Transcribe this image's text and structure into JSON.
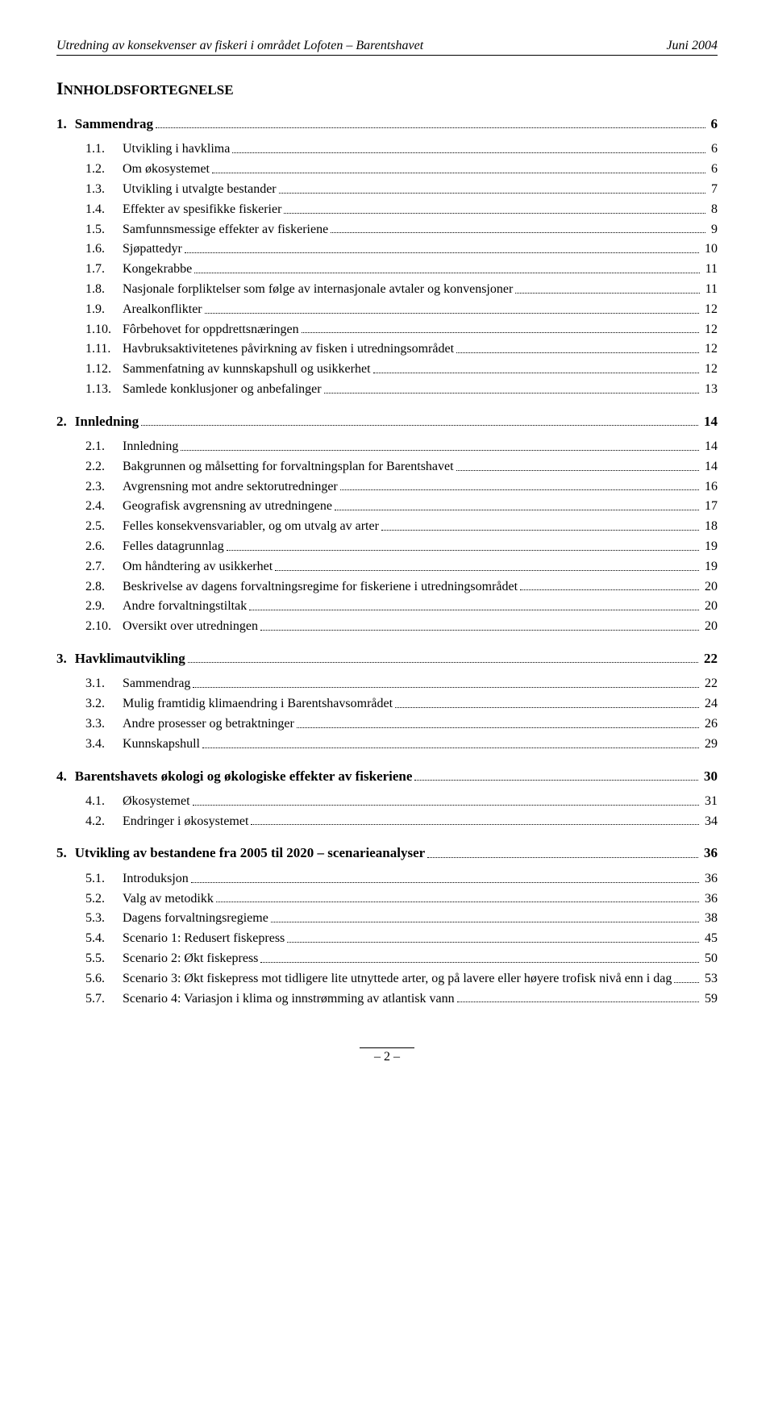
{
  "header": {
    "left": "Utredning av konsekvenser av fiskeri i området Lofoten – Barentshavet",
    "right": "Juni 2004"
  },
  "title_parts": {
    "big": "I",
    "rest": "NNHOLDSFORTEGNELSE"
  },
  "toc": [
    {
      "num": "1.",
      "label": "Sammendrag",
      "page": "6",
      "level": 1
    },
    {
      "num": "1.1.",
      "label": "Utvikling i havklima",
      "page": "6",
      "level": 2
    },
    {
      "num": "1.2.",
      "label": "Om økosystemet",
      "page": "6",
      "level": 2
    },
    {
      "num": "1.3.",
      "label": "Utvikling i utvalgte bestander",
      "page": "7",
      "level": 2
    },
    {
      "num": "1.4.",
      "label": "Effekter av spesifikke fiskerier",
      "page": "8",
      "level": 2
    },
    {
      "num": "1.5.",
      "label": "Samfunnsmessige effekter av fiskeriene",
      "page": "9",
      "level": 2
    },
    {
      "num": "1.6.",
      "label": "Sjøpattedyr",
      "page": "10",
      "level": 2
    },
    {
      "num": "1.7.",
      "label": "Kongekrabbe",
      "page": "11",
      "level": 2
    },
    {
      "num": "1.8.",
      "label": "Nasjonale forpliktelser som følge av internasjonale avtaler og konvensjoner",
      "page": "11",
      "level": 2
    },
    {
      "num": "1.9.",
      "label": "Arealkonflikter",
      "page": "12",
      "level": 2
    },
    {
      "num": "1.10.",
      "label": "Fôrbehovet for oppdrettsnæringen",
      "page": "12",
      "level": 2
    },
    {
      "num": "1.11.",
      "label": "Havbruksaktivitetenes påvirkning av fisken i utredningsområdet",
      "page": "12",
      "level": 2
    },
    {
      "num": "1.12.",
      "label": "Sammenfatning av kunnskapshull og usikkerhet",
      "page": "12",
      "level": 2
    },
    {
      "num": "1.13.",
      "label": "Samlede konklusjoner og anbefalinger",
      "page": "13",
      "level": 2
    },
    {
      "num": "2.",
      "label": "Innledning",
      "page": "14",
      "level": 1
    },
    {
      "num": "2.1.",
      "label": "Innledning",
      "page": "14",
      "level": 2
    },
    {
      "num": "2.2.",
      "label": "Bakgrunnen og målsetting for forvaltningsplan for Barentshavet",
      "page": "14",
      "level": 2
    },
    {
      "num": "2.3.",
      "label": "Avgrensning mot andre sektorutredninger",
      "page": "16",
      "level": 2
    },
    {
      "num": "2.4.",
      "label": "Geografisk avgrensning av utredningene",
      "page": "17",
      "level": 2
    },
    {
      "num": "2.5.",
      "label": "Felles konsekvensvariabler, og om utvalg av arter",
      "page": "18",
      "level": 2
    },
    {
      "num": "2.6.",
      "label": "Felles datagrunnlag",
      "page": "19",
      "level": 2
    },
    {
      "num": "2.7.",
      "label": "Om håndtering av usikkerhet",
      "page": "19",
      "level": 2
    },
    {
      "num": "2.8.",
      "label": "Beskrivelse av dagens forvaltningsregime for fiskeriene i utredningsområdet",
      "page": "20",
      "level": 2
    },
    {
      "num": "2.9.",
      "label": "Andre forvaltningstiltak",
      "page": "20",
      "level": 2
    },
    {
      "num": "2.10.",
      "label": "Oversikt over utredningen",
      "page": "20",
      "level": 2
    },
    {
      "num": "3.",
      "label": "Havklimautvikling",
      "page": "22",
      "level": 1
    },
    {
      "num": "3.1.",
      "label": "Sammendrag",
      "page": "22",
      "level": 2
    },
    {
      "num": "3.2.",
      "label": "Mulig framtidig klimaendring i Barentshavsområdet",
      "page": "24",
      "level": 2
    },
    {
      "num": "3.3.",
      "label": "Andre prosesser og betraktninger",
      "page": "26",
      "level": 2
    },
    {
      "num": "3.4.",
      "label": "Kunnskapshull",
      "page": "29",
      "level": 2
    },
    {
      "num": "4.",
      "label": "Barentshavets økologi og økologiske effekter av fiskeriene",
      "page": "30",
      "level": 1
    },
    {
      "num": "4.1.",
      "label": "Økosystemet",
      "page": "31",
      "level": 2
    },
    {
      "num": "4.2.",
      "label": "Endringer i økosystemet",
      "page": "34",
      "level": 2
    },
    {
      "num": "5.",
      "label": "Utvikling av bestandene fra 2005 til 2020 – scenarieanalyser",
      "page": "36",
      "level": 1
    },
    {
      "num": "5.1.",
      "label": "Introduksjon",
      "page": "36",
      "level": 2
    },
    {
      "num": "5.2.",
      "label": "Valg av metodikk",
      "page": "36",
      "level": 2
    },
    {
      "num": "5.3.",
      "label": "Dagens forvaltningsregieme",
      "page": "38",
      "level": 2
    },
    {
      "num": "5.4.",
      "label": "Scenario 1: Redusert fiskepress",
      "page": "45",
      "level": 2
    },
    {
      "num": "5.5.",
      "label": "Scenario 2: Økt fiskepress",
      "page": "50",
      "level": 2
    },
    {
      "num": "5.6.",
      "label": "Scenario 3: Økt fiskepress mot tidligere lite utnyttede arter, og på lavere eller høyere trofisk nivå enn i dag",
      "page": "53",
      "level": 2
    },
    {
      "num": "5.7.",
      "label": "Scenario 4: Variasjon i klima og innstrømming av atlantisk vann",
      "page": "59",
      "level": 2
    }
  ],
  "footer": {
    "page": "2",
    "dash": "–"
  }
}
